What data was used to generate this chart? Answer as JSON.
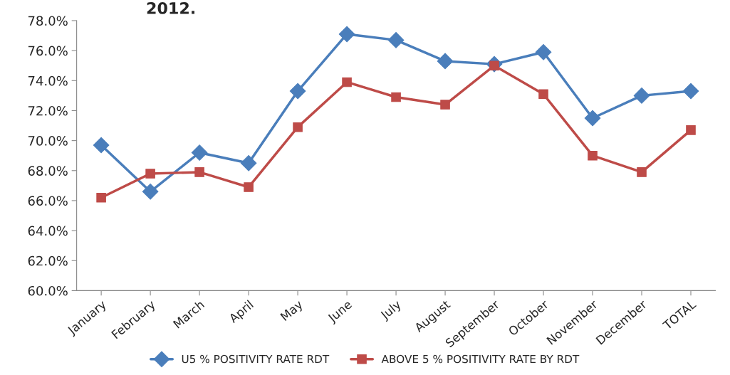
{
  "chart_data": {
    "type": "line",
    "title": "2012.",
    "categories": [
      "January",
      "February",
      "March",
      "April",
      "May",
      "June",
      "July",
      "August",
      "September",
      "October",
      "November",
      "December",
      "TOTAL"
    ],
    "series": [
      {
        "name": "U5 % POSITIVITY RATE RDT",
        "color": "#4a7ebb",
        "marker": "diamond",
        "values": [
          69.7,
          66.6,
          69.2,
          68.5,
          73.3,
          77.1,
          76.7,
          75.3,
          75.1,
          75.9,
          71.5,
          73.0,
          73.3
        ]
      },
      {
        "name": "ABOVE 5 % POSITIVITY RATE BY RDT",
        "color": "#be4b48",
        "marker": "square",
        "values": [
          66.2,
          67.8,
          67.9,
          66.9,
          70.9,
          73.9,
          72.9,
          72.4,
          75.0,
          73.1,
          69.0,
          67.9,
          70.7
        ]
      }
    ],
    "ylim": [
      60,
      78
    ],
    "yticks": [
      {
        "value": 60,
        "label": "60.0%"
      },
      {
        "value": 62,
        "label": "62.0%"
      },
      {
        "value": 64,
        "label": "64.0%"
      },
      {
        "value": 66,
        "label": "66.0%"
      },
      {
        "value": 68,
        "label": "68.0%"
      },
      {
        "value": 70,
        "label": "70.0%"
      },
      {
        "value": 72,
        "label": "72.0%"
      },
      {
        "value": 74,
        "label": "74.0%"
      },
      {
        "value": 76,
        "label": "76.0%"
      },
      {
        "value": 78,
        "label": "78.0%"
      }
    ],
    "grid": false,
    "legend": "bottom",
    "line_style": "solid"
  }
}
